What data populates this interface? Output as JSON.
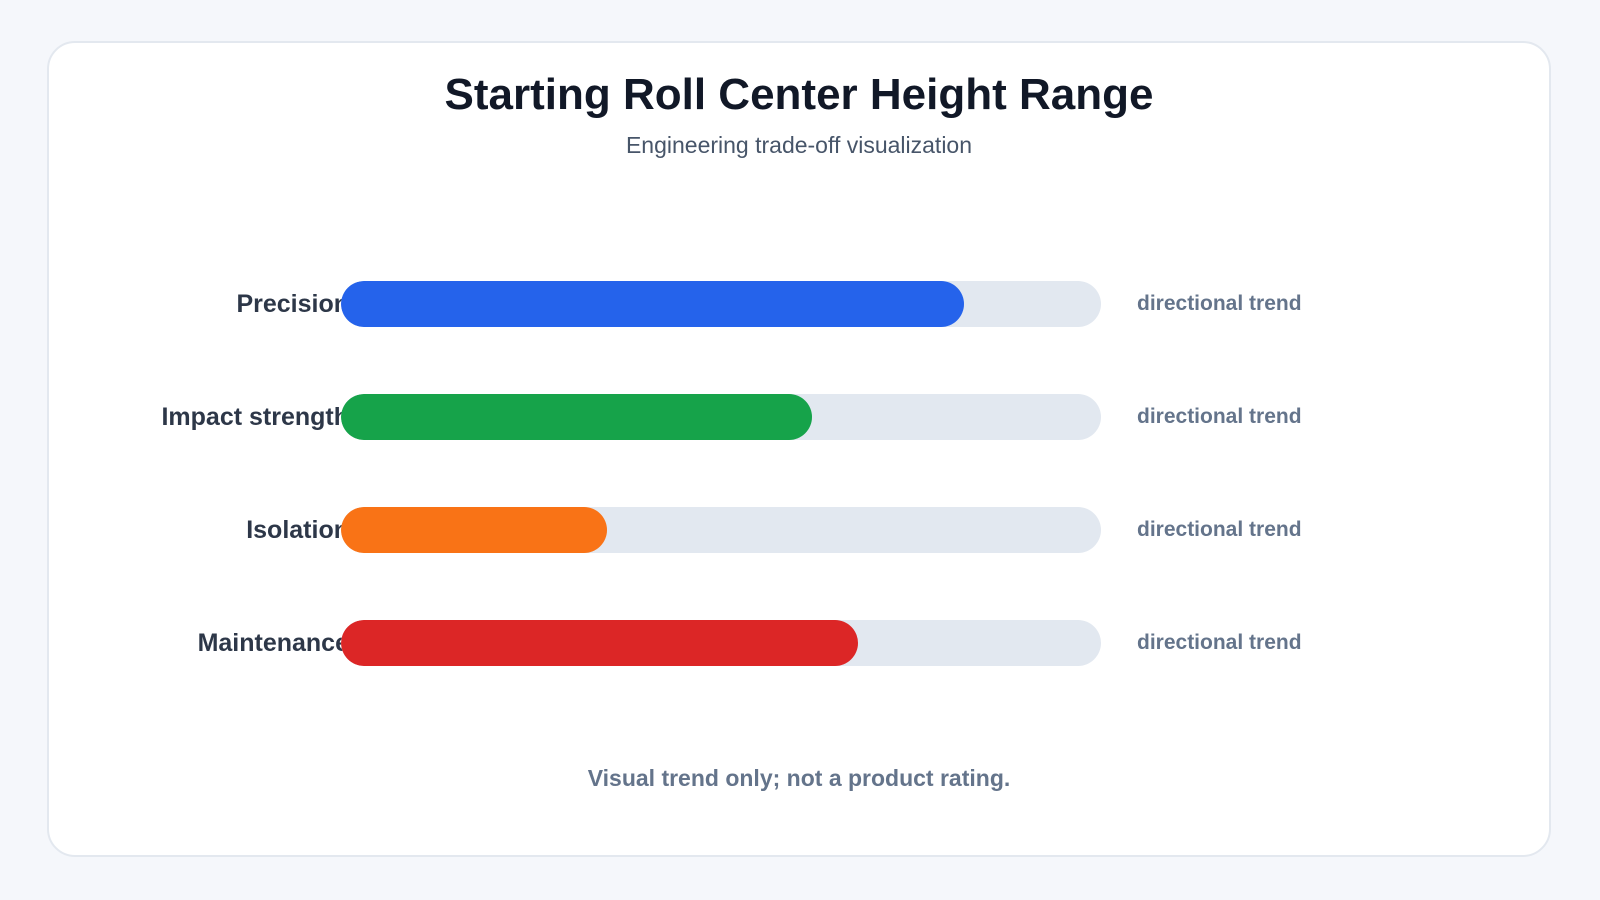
{
  "header": {
    "title": "Starting Roll Center Height Range",
    "subtitle": "Engineering trade-off visualization"
  },
  "footnote": "Visual trend only; not a product rating.",
  "chart_data": {
    "type": "bar",
    "orientation": "horizontal",
    "title": "Starting Roll Center Height Range",
    "subtitle": "Engineering trade-off visualization",
    "categories": [
      "Precision",
      "Impact strength",
      "Isolation",
      "Maintenance"
    ],
    "values": [
      82,
      62,
      35,
      68
    ],
    "xlim": [
      0,
      100
    ],
    "value_labels": [
      "directional trend",
      "directional trend",
      "directional trend",
      "directional trend"
    ],
    "colors": [
      "#2563eb",
      "#16a34a",
      "#f97316",
      "#dc2626"
    ],
    "track_color": "#e2e8f0",
    "grid": false,
    "legend": "none"
  }
}
